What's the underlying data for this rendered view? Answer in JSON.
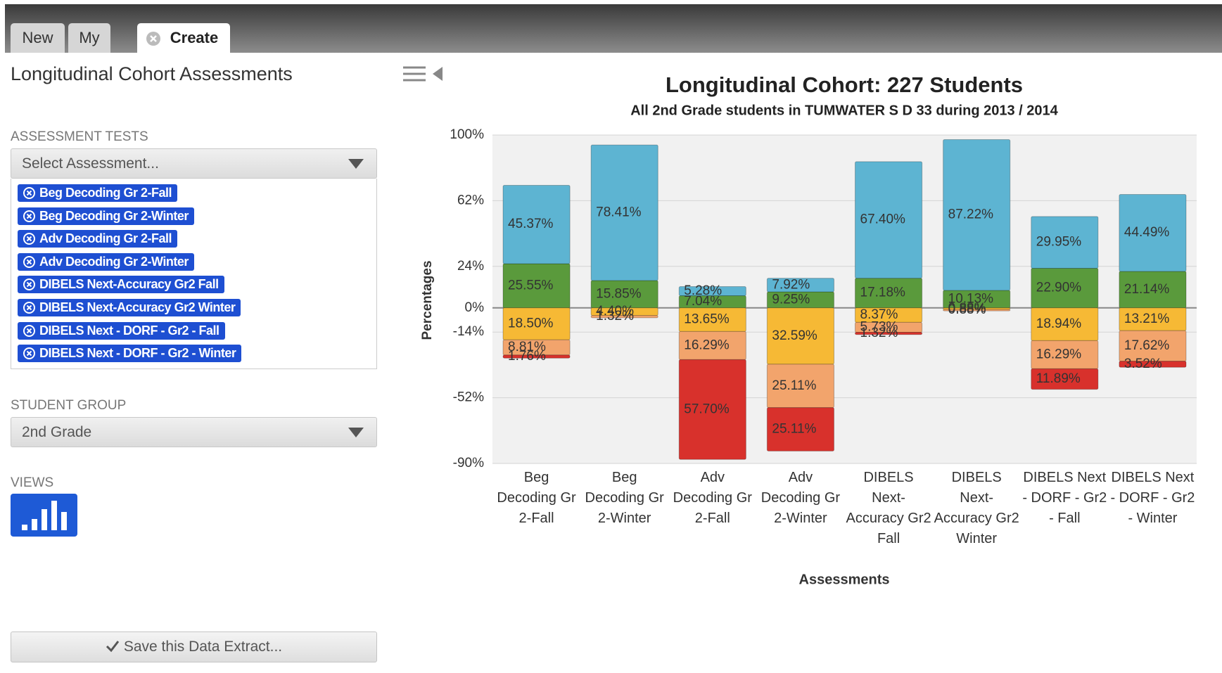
{
  "tabs": [
    "New",
    "My",
    "Create"
  ],
  "panel": {
    "title": "Longitudinal Cohort Assessments",
    "assessment_label": "ASSESSMENT TESTS",
    "assessment_placeholder": "Select Assessment...",
    "assessments": [
      "Beg Decoding Gr 2-Fall",
      "Beg Decoding Gr 2-Winter",
      "Adv Decoding Gr 2-Fall",
      "Adv Decoding Gr 2-Winter",
      "DIBELS Next-Accuracy Gr2 Fall",
      "DIBELS Next-Accuracy Gr2 Winter",
      "DIBELS Next - DORF - Gr2 - Fall",
      "DIBELS Next - DORF - Gr2 - Winter"
    ],
    "group_label": "STUDENT GROUP",
    "group_value": "2nd Grade",
    "views_label": "VIEWS",
    "save_button": "Save this Data Extract..."
  },
  "chart_data": {
    "type": "bar",
    "title": "Longitudinal Cohort: 227 Students",
    "subtitle": "All 2nd Grade students in TUMWATER S D 33 during 2013 / 2014",
    "ylabel": "Percentages",
    "xlabel": "Assessments",
    "categories": [
      "Beg Decoding Gr 2-Fall",
      "Beg Decoding Gr 2-Winter",
      "Adv Decoding Gr 2-Fall",
      "Adv Decoding Gr 2-Winter",
      "DIBELS Next-Accuracy Gr2 Fall",
      "DIBELS Next-Accuracy Gr2 Winter",
      "DIBELS Next - DORF - Gr2 - Fall",
      "DIBELS Next - DORF - Gr2 - Winter"
    ],
    "ylim": [
      -90,
      100
    ],
    "yticks": [
      {
        "value": 100,
        "label": "100%"
      },
      {
        "value": 62,
        "label": "62%"
      },
      {
        "value": 24,
        "label": "24%"
      },
      {
        "value": 0,
        "label": "0%"
      },
      {
        "value": -14,
        "label": "-14%"
      },
      {
        "value": -52,
        "label": "-52%"
      },
      {
        "value": -90,
        "label": "-90%"
      }
    ],
    "grid": true,
    "series": [
      {
        "color": "#5a9a3c",
        "stack": "up",
        "values": [
          25.55,
          15.85,
          7.04,
          9.25,
          17.18,
          10.13,
          22.9,
          21.14
        ],
        "value_labels": [
          "25.55%",
          "15.85%",
          "7.04%",
          "9.25%",
          "17.18%",
          "10.13%",
          "22.90%",
          "21.14%"
        ]
      },
      {
        "color": "#5db4d2",
        "stack": "up",
        "values": [
          45.37,
          78.41,
          5.28,
          7.92,
          67.4,
          87.22,
          29.95,
          44.49
        ],
        "value_labels": [
          "45.37%",
          "78.41%",
          "5.28%",
          "7.92%",
          "67.40%",
          "87.22%",
          "29.95%",
          "44.49%"
        ]
      },
      {
        "color": "#f6b935",
        "stack": "down",
        "values": [
          18.5,
          4.4,
          13.65,
          32.59,
          8.37,
          0.88,
          18.94,
          13.21
        ],
        "value_labels": [
          "18.50%",
          "4.40%",
          "13.65%",
          "32.59%",
          "8.37%",
          "0.88%",
          "18.94%",
          "13.21%"
        ]
      },
      {
        "color": "#f2a46c",
        "stack": "down",
        "values": [
          8.81,
          1.32,
          16.29,
          25.11,
          5.73,
          0.88,
          16.29,
          17.62
        ],
        "value_labels": [
          "8.81%",
          "1.32%",
          "16.29%",
          "25.11%",
          "5.73%",
          "0.88%",
          "16.29%",
          "17.62%"
        ]
      },
      {
        "color": "#d8312c",
        "stack": "down",
        "values": [
          1.76,
          null,
          57.7,
          25.11,
          1.32,
          null,
          11.89,
          3.52
        ],
        "value_labels": [
          "1.76%",
          null,
          "57.70%",
          "25.11%",
          "1.32%",
          null,
          "11.89%",
          "3.52%"
        ]
      }
    ]
  }
}
